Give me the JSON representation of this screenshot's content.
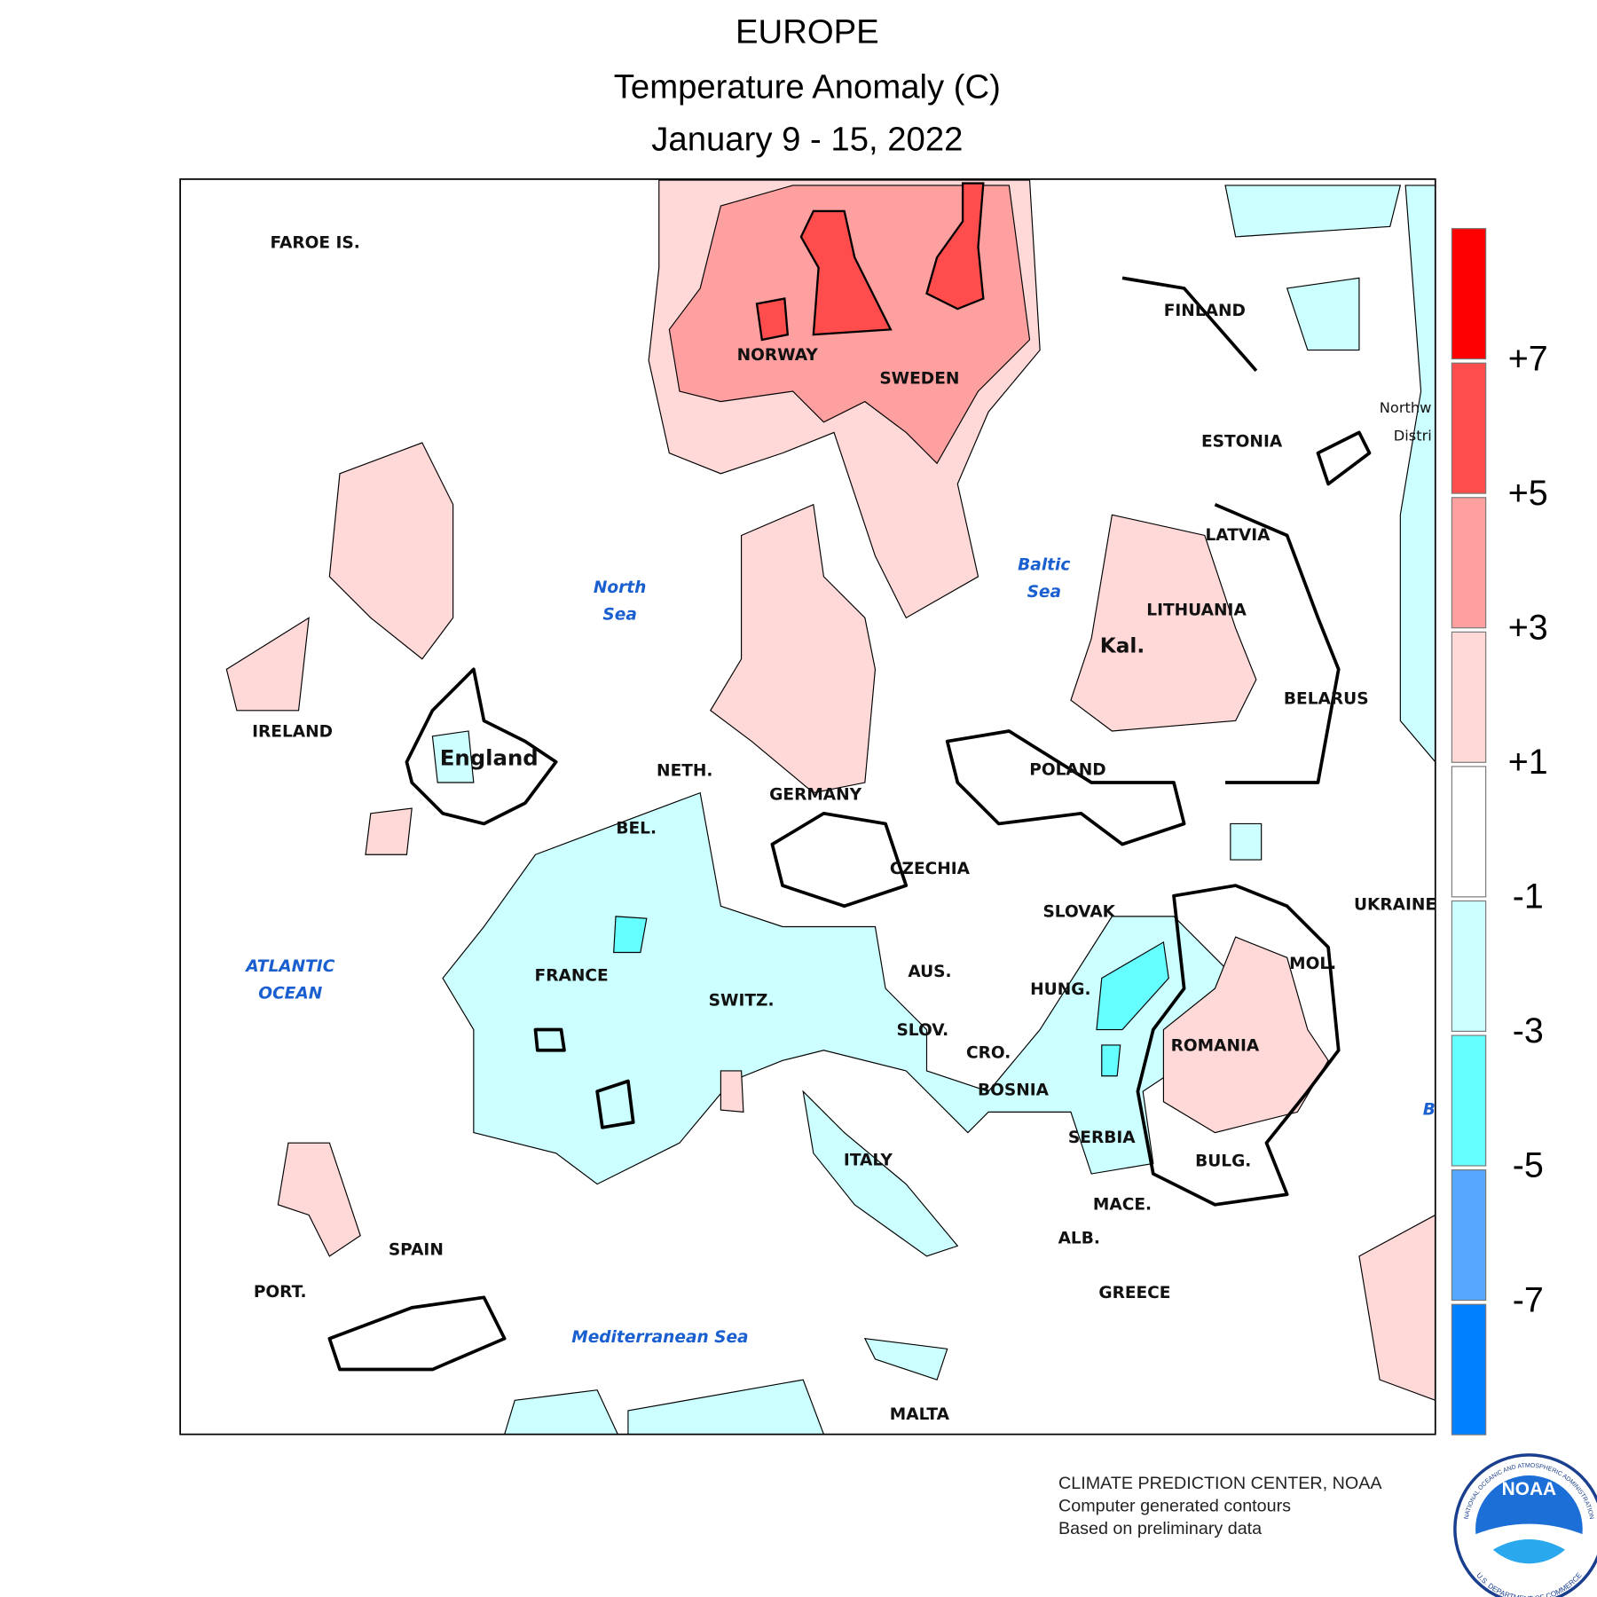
{
  "header": {
    "title": "EUROPE",
    "subtitle": "Temperature Anomaly (C)",
    "date": "January 9 - 15, 2022"
  },
  "map": {
    "countries": [
      "FAROE IS.",
      "NORWAY",
      "SWEDEN",
      "FINLAND",
      "ESTONIA",
      "LATVIA",
      "LITHUANIA",
      "Kal.",
      "BELARUS",
      "POLAND",
      "IRELAND",
      "England",
      "NETH.",
      "GERMANY",
      "BEL.",
      "CZECHIA",
      "SLOVAK",
      "UKRAINE",
      "MOL.",
      "AUS.",
      "FRANCE",
      "SWITZ.",
      "HUNG.",
      "SLOV.",
      "CRO.",
      "ROMANIA",
      "BOSNIA",
      "SERBIA",
      "ITALY",
      "BULG.",
      "MACE.",
      "ALB.",
      "SPAIN",
      "PORT.",
      "GREECE",
      "MALTA",
      "Northw",
      "Distri"
    ],
    "seas": [
      {
        "lines": [
          "North",
          "Sea"
        ]
      },
      {
        "lines": [
          "Baltic",
          "Sea"
        ]
      },
      {
        "lines": [
          "ATLANTIC",
          "OCEAN"
        ]
      },
      {
        "lines": [
          "Mediterranean Sea"
        ]
      },
      {
        "lines": [
          "B"
        ]
      }
    ]
  },
  "legend": {
    "colors": [
      "#ff0000",
      "#ff4d4d",
      "#ffa0a0",
      "#ffd8d8",
      "#ffffff",
      "#ccffff",
      "#66ffff",
      "#56a8ff",
      "#0080ff"
    ],
    "ticks": [
      {
        "value": 7,
        "label": "+7"
      },
      {
        "value": 5,
        "label": "+5"
      },
      {
        "value": 3,
        "label": "+3"
      },
      {
        "value": 1,
        "label": "+1"
      },
      -1,
      -3,
      -5,
      -7
    ]
  },
  "footer": {
    "lines": [
      "CLIMATE PREDICTION CENTER, NOAA",
      "Computer generated contours",
      "Based on preliminary data"
    ]
  },
  "logo": {
    "text": "NOAA",
    "ring_top": "NATIONAL OCEANIC AND ATMOSPHERIC ADMINISTRATION",
    "ring_bottom": "U.S. DEPARTMENT OF COMMERCE"
  }
}
